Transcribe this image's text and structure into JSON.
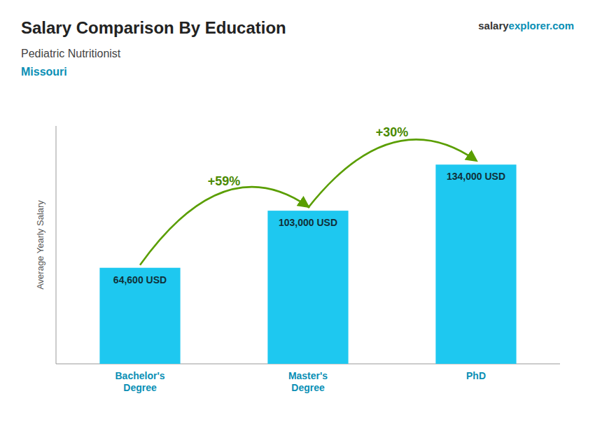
{
  "chart_data": {
    "type": "bar",
    "title": "Salary Comparison By Education",
    "subtitle": "Pediatric Nutritionist",
    "annotations": [
      "Missouri",
      "+59%",
      "+30%",
      "salary",
      "explorer",
      ".com"
    ],
    "categories": [
      "Bachelor's\nDegree",
      "Master's\nDegree",
      "PhD"
    ],
    "values": [
      64600,
      103000,
      134000
    ],
    "value_labels": [
      "64,600 USD",
      "103,000 USD",
      "134,000 USD"
    ],
    "data_labels": true,
    "color": "#1ec8f0",
    "y_label": "Average Yearly Salary",
    "ylim": [
      0,
      160000
    ],
    "tick_labels": "x",
    "grid": false
  }
}
